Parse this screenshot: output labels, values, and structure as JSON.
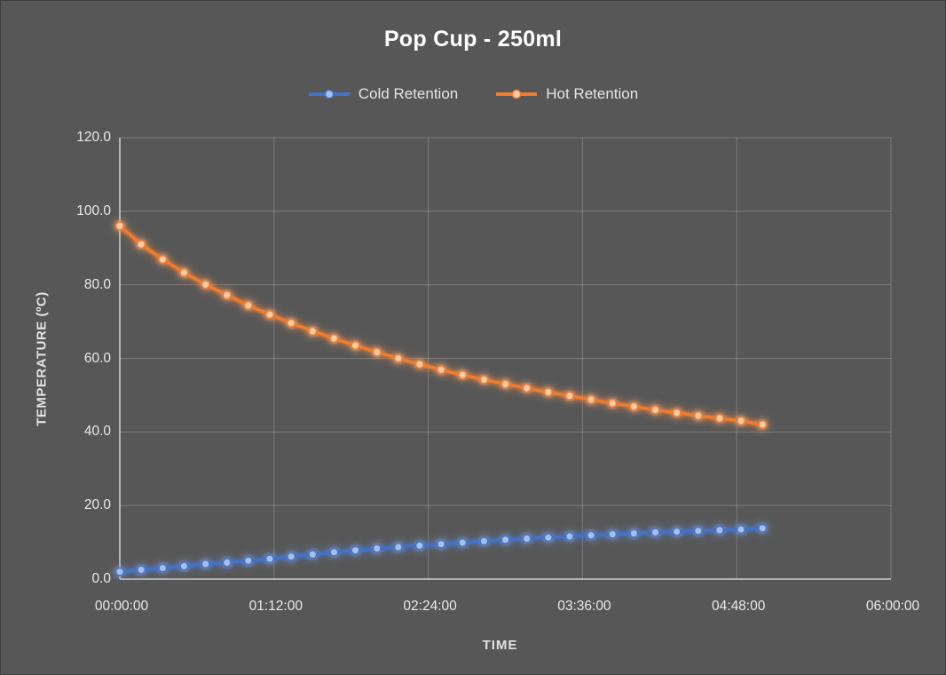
{
  "window": {
    "background_color": "#575757"
  },
  "chart": {
    "title": "Pop Cup - 250ml",
    "x_axis_title": "TIME",
    "y_axis_title": "TEMPERATURE (ºC)"
  },
  "chart_data": {
    "type": "line",
    "title": "Pop Cup - 250ml",
    "xlabel": "TIME",
    "ylabel": "TEMPERATURE (ºC)",
    "x_minutes": [
      0,
      10,
      20,
      30,
      40,
      50,
      60,
      70,
      80,
      90,
      100,
      110,
      120,
      130,
      140,
      150,
      160,
      170,
      180,
      190,
      200,
      210,
      220,
      230,
      240,
      250,
      260,
      270,
      280,
      290,
      300
    ],
    "x_tick_minutes": [
      0,
      72,
      144,
      216,
      288,
      360
    ],
    "x_tick_labels": [
      "00:00:00",
      "01:12:00",
      "02:24:00",
      "03:36:00",
      "04:48:00",
      "06:00:00"
    ],
    "xlim_minutes": [
      0,
      360
    ],
    "y_ticks": [
      0,
      20,
      40,
      60,
      80,
      100,
      120
    ],
    "y_tick_labels": [
      "0.0",
      "20.0",
      "40.0",
      "60.0",
      "80.0",
      "100.0",
      "120.0"
    ],
    "ylim": [
      0,
      120
    ],
    "grid": true,
    "legend_position": "top-center",
    "series": [
      {
        "name": "Cold Retention",
        "color": "#4472C4",
        "marker_fill": "#A6BFE6",
        "values": [
          2.0,
          2.5,
          3.0,
          3.5,
          4.1,
          4.5,
          5.0,
          5.5,
          6.1,
          6.7,
          7.3,
          7.8,
          8.3,
          8.7,
          9.1,
          9.5,
          9.9,
          10.3,
          10.7,
          11.0,
          11.3,
          11.6,
          11.9,
          12.2,
          12.4,
          12.7,
          12.9,
          13.1,
          13.3,
          13.5,
          13.8
        ]
      },
      {
        "name": "Hot Retention",
        "color": "#ED7D31",
        "marker_fill": "#F7CBA4",
        "values": [
          96.0,
          91.0,
          86.9,
          83.3,
          80.1,
          77.2,
          74.4,
          71.9,
          69.6,
          67.4,
          65.4,
          63.5,
          61.7,
          60.0,
          58.4,
          56.9,
          55.5,
          54.2,
          53.0,
          51.9,
          50.8,
          49.8,
          48.8,
          47.8,
          46.9,
          46.0,
          45.2,
          44.4,
          43.7,
          43.0,
          42.0
        ]
      }
    ]
  }
}
